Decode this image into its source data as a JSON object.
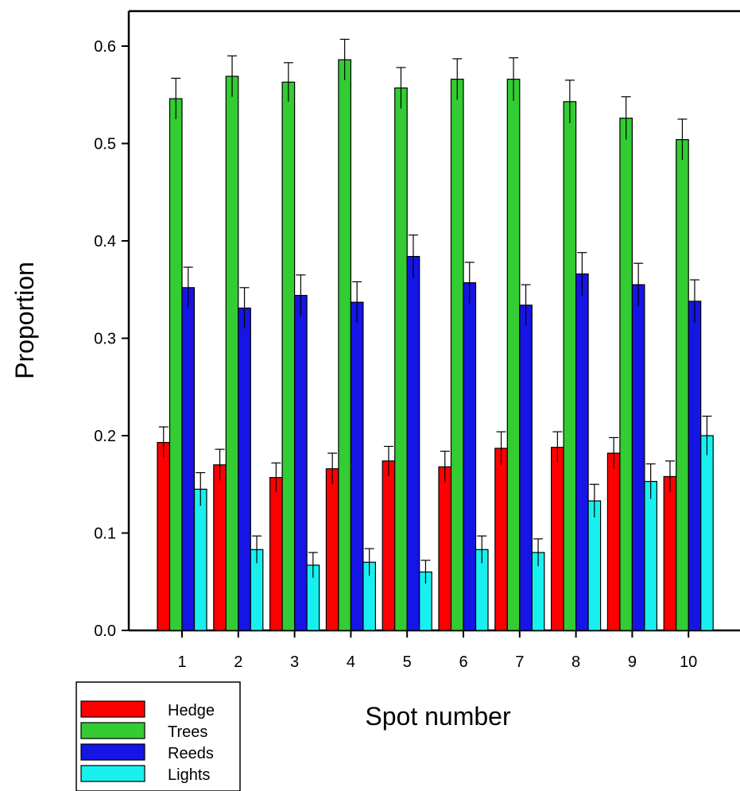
{
  "chart_data": {
    "type": "bar",
    "xlabel": "Spot number",
    "ylabel": "Proportion",
    "ylim": [
      0,
      0.6
    ],
    "yticks": [
      "0.0",
      "0.1",
      "0.2",
      "0.3",
      "0.4",
      "0.5",
      "0.6"
    ],
    "categories": [
      "1",
      "2",
      "3",
      "4",
      "5",
      "6",
      "7",
      "8",
      "9",
      "10"
    ],
    "grid": false,
    "legend_position": "bottom-left",
    "series": [
      {
        "name": "Hedge",
        "color": "#ff0000",
        "values": [
          0.193,
          0.17,
          0.157,
          0.166,
          0.174,
          0.168,
          0.187,
          0.188,
          0.182,
          0.158
        ],
        "errors": [
          0.016,
          0.016,
          0.015,
          0.016,
          0.015,
          0.016,
          0.017,
          0.016,
          0.016,
          0.016
        ]
      },
      {
        "name": "Trees",
        "color": "#33cc33",
        "values": [
          0.546,
          0.569,
          0.563,
          0.586,
          0.557,
          0.566,
          0.566,
          0.543,
          0.526,
          0.504
        ],
        "errors": [
          0.021,
          0.021,
          0.02,
          0.021,
          0.021,
          0.021,
          0.022,
          0.022,
          0.022,
          0.021
        ]
      },
      {
        "name": "Reeds",
        "color": "#1515e6",
        "values": [
          0.352,
          0.331,
          0.344,
          0.337,
          0.384,
          0.357,
          0.334,
          0.366,
          0.355,
          0.338
        ],
        "errors": [
          0.021,
          0.021,
          0.021,
          0.021,
          0.022,
          0.021,
          0.021,
          0.022,
          0.022,
          0.022
        ]
      },
      {
        "name": "Lights",
        "color": "#18f0f0",
        "values": [
          0.145,
          0.083,
          0.067,
          0.07,
          0.06,
          0.083,
          0.08,
          0.133,
          0.153,
          0.2
        ],
        "errors": [
          0.017,
          0.014,
          0.013,
          0.014,
          0.012,
          0.014,
          0.014,
          0.017,
          0.018,
          0.02
        ]
      }
    ]
  }
}
